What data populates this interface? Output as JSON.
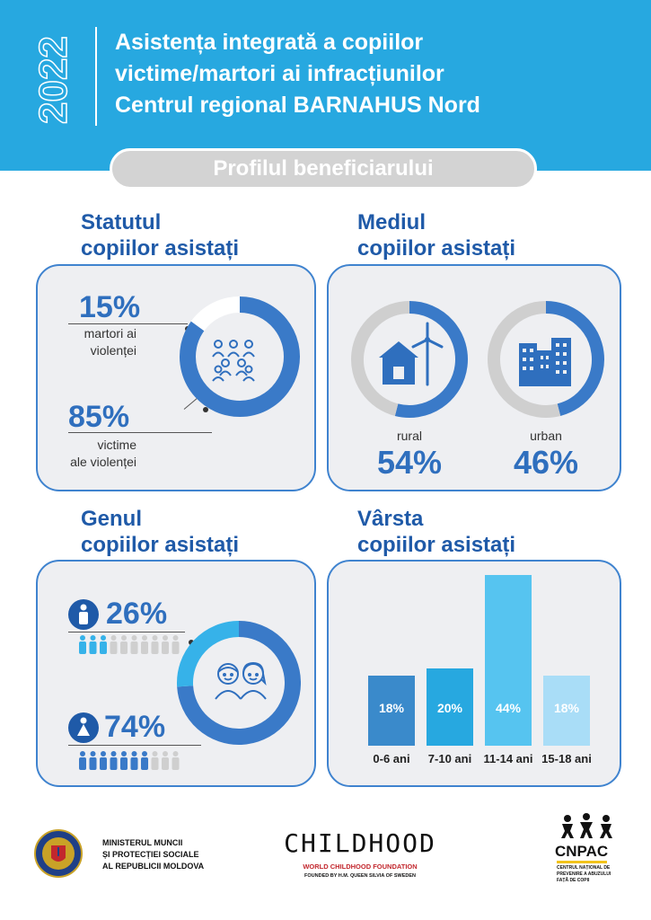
{
  "header": {
    "year": "2022",
    "title_line1": "Asistența integrată a copiilor",
    "title_line2": "victime/martori ai infracțiunilor",
    "title_line3": "Centrul regional BARNAHUS Nord",
    "subtitle": "Profilul beneficiarului"
  },
  "status": {
    "title_line1": "Statutul",
    "title_line2": "copiilor asistați",
    "witness_pct": "15%",
    "witness_label_1": "martori ai",
    "witness_label_2": "violenței",
    "victim_pct": "85%",
    "victim_label_1": "victime",
    "victim_label_2": "ale violenței"
  },
  "environment": {
    "title_line1": "Mediul",
    "title_line2": "copiilor asistați",
    "rural_label": "rural",
    "rural_pct": "54%",
    "urban_label": "urban",
    "urban_pct": "46%"
  },
  "gender": {
    "title_line1": "Genul",
    "title_line2": "copiilor asistați",
    "male_pct": "26%",
    "female_pct": "74%"
  },
  "age": {
    "title_line1": "Vârsta",
    "title_line2": "copiilor asistați"
  },
  "footer": {
    "ministry_line1": "MINISTERUL MUNCII",
    "ministry_line2": "ȘI PROTECȚIEI SOCIALE",
    "ministry_line3": "AL REPUBLICII MOLDOVA",
    "childhood_logo": "CHILDHOOD",
    "childhood_sub1": "WORLD CHILDHOOD FOUNDATION",
    "childhood_sub2": "FOUNDED BY H.M. QUEEN SILVIA OF SWEDEN",
    "cnpac_logo": "CNPAC",
    "cnpac_sub": "CENTRUL NAȚIONAL DE PREVENIRE A ABUZULUI FAȚĂ DE COPII"
  },
  "colors": {
    "dark_blue": "#3a7ac8",
    "light_blue": "#36b2e9",
    "grey": "#cfcfcf",
    "sky": "#2aa9e0"
  },
  "chart_data": [
    {
      "type": "pie",
      "categories": [
        "martori ai violenței",
        "victime ale violenței"
      ],
      "values": [
        15,
        85
      ]
    },
    {
      "type": "pie",
      "categories": [
        "rural",
        "urban"
      ],
      "values": [
        54,
        46
      ]
    },
    {
      "type": "pie",
      "categories": [
        "male",
        "female"
      ],
      "values": [
        26,
        74
      ]
    },
    {
      "type": "bar",
      "categories": [
        "0-6 ani",
        "7-10 ani",
        "11-14 ani",
        "15-18 ani"
      ],
      "values": [
        18,
        20,
        44,
        18
      ],
      "value_labels": [
        "18%",
        "20%",
        "44%",
        "18%"
      ],
      "colors": [
        "#3a8acb",
        "#27a8e0",
        "#56c4f0",
        "#a9ddf7"
      ]
    }
  ]
}
